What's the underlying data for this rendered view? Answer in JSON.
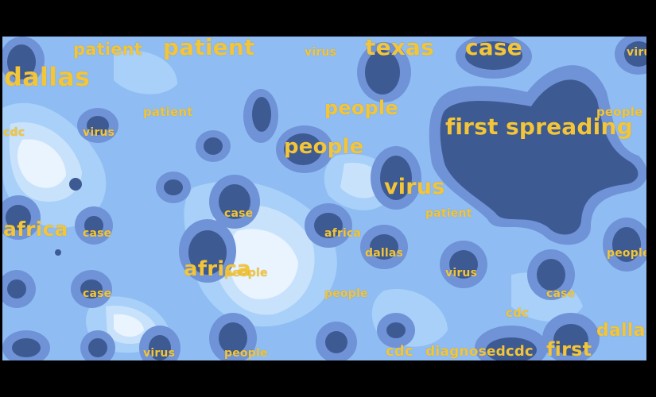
{
  "colors": {
    "level0": "#e9f4ff",
    "level1": "#c9e2fb",
    "level2": "#a8d0f8",
    "level3": "#8fbdf3",
    "level4": "#6f93d6",
    "level5": "#3d5a93",
    "word": "#f2c53a",
    "frame": "#000000"
  },
  "words": [
    {
      "text": "patient"
    },
    {
      "text": "patient"
    },
    {
      "text": "virus"
    },
    {
      "text": "texas"
    },
    {
      "text": "case"
    },
    {
      "text": "virus"
    },
    {
      "text": "dallas"
    },
    {
      "text": "patient"
    },
    {
      "text": "people"
    },
    {
      "text": "people"
    },
    {
      "text": "cdc"
    },
    {
      "text": "virus"
    },
    {
      "text": "first"
    },
    {
      "text": "spreading"
    },
    {
      "text": "people"
    },
    {
      "text": "virus"
    },
    {
      "text": "case"
    },
    {
      "text": "patient"
    },
    {
      "text": "africa"
    },
    {
      "text": "case"
    },
    {
      "text": "africa"
    },
    {
      "text": "dallas"
    },
    {
      "text": "africa"
    },
    {
      "text": "people"
    },
    {
      "text": "virus"
    },
    {
      "text": "people"
    },
    {
      "text": "case"
    },
    {
      "text": "people"
    },
    {
      "text": "case"
    },
    {
      "text": "cdc"
    },
    {
      "text": "dallas"
    },
    {
      "text": "virus"
    },
    {
      "text": "people"
    },
    {
      "text": "cdc"
    },
    {
      "text": "diagnosed"
    },
    {
      "text": "cdc"
    },
    {
      "text": "first"
    }
  ]
}
